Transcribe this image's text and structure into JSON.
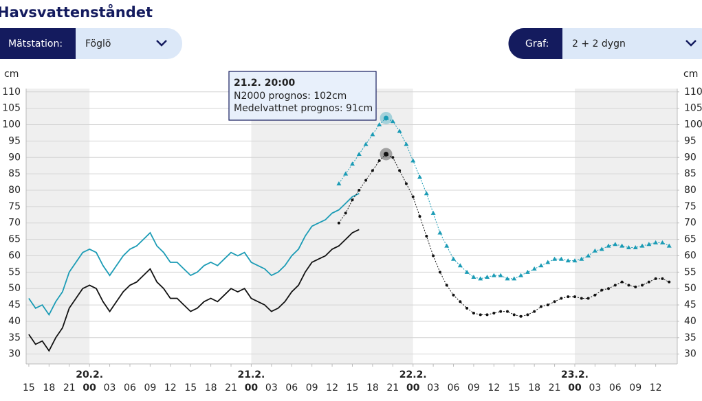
{
  "header": {
    "title": "Havsvattenståndet"
  },
  "controls": [
    {
      "label": "Mätstation:",
      "value": "Föglö"
    },
    {
      "label": "Graf:",
      "value": "2 + 2 dygn"
    }
  ],
  "chart_data": {
    "type": "line",
    "y_unit": "cm",
    "y2_unit": "cm",
    "xlim": [
      14.6,
      111.2
    ],
    "ylim": [
      27,
      111
    ],
    "y2lim": [
      27,
      111
    ],
    "yticks": [
      30,
      35,
      40,
      45,
      50,
      55,
      60,
      65,
      70,
      75,
      80,
      85,
      90,
      95,
      100,
      105,
      110
    ],
    "y2ticks": [
      30,
      35,
      40,
      45,
      50,
      55,
      60,
      65,
      70,
      75,
      80,
      85,
      90,
      95,
      100,
      105,
      110
    ],
    "grid": true,
    "xticks": [
      {
        "value": 15,
        "label": "15"
      },
      {
        "value": 18,
        "label": "18"
      },
      {
        "value": 21,
        "label": "21"
      },
      {
        "value": 24,
        "label": "00"
      },
      {
        "value": 27,
        "label": "03"
      },
      {
        "value": 30,
        "label": "06"
      },
      {
        "value": 33,
        "label": "09"
      },
      {
        "value": 36,
        "label": "12"
      },
      {
        "value": 39,
        "label": "15"
      },
      {
        "value": 42,
        "label": "18"
      },
      {
        "value": 45,
        "label": "21"
      },
      {
        "value": 48,
        "label": "00"
      },
      {
        "value": 51,
        "label": "03"
      },
      {
        "value": 54,
        "label": "06"
      },
      {
        "value": 57,
        "label": "09"
      },
      {
        "value": 60,
        "label": "12"
      },
      {
        "value": 63,
        "label": "15"
      },
      {
        "value": 66,
        "label": "18"
      },
      {
        "value": 69,
        "label": "21"
      },
      {
        "value": 72,
        "label": "00"
      },
      {
        "value": 75,
        "label": "03"
      },
      {
        "value": 78,
        "label": "06"
      },
      {
        "value": 81,
        "label": "09"
      },
      {
        "value": 84,
        "label": "12"
      },
      {
        "value": 87,
        "label": "15"
      },
      {
        "value": 90,
        "label": "18"
      },
      {
        "value": 93,
        "label": "21"
      },
      {
        "value": 96,
        "label": "00"
      },
      {
        "value": 99,
        "label": "03"
      },
      {
        "value": 102,
        "label": "06"
      },
      {
        "value": 105,
        "label": "09"
      },
      {
        "value": 108,
        "label": "12"
      }
    ],
    "day_labels": [
      {
        "value": 24,
        "label": "20.2."
      },
      {
        "value": 48,
        "label": "21.2."
      },
      {
        "value": 72,
        "label": "22.2."
      },
      {
        "value": 96,
        "label": "23.2."
      }
    ],
    "shaded": [
      [
        14.6,
        24
      ],
      [
        48,
        72
      ],
      [
        96,
        111.2
      ]
    ],
    "shade_color": "#efefef",
    "series": [
      {
        "color": "#1a9bb5",
        "style": "solid",
        "x": [
          15,
          16,
          17,
          18,
          19,
          20,
          21,
          22,
          23,
          24,
          25,
          26,
          27,
          28,
          29,
          30,
          31,
          32,
          33,
          34,
          35,
          36,
          37,
          38,
          39,
          40,
          41,
          42,
          43,
          44,
          45,
          46,
          47,
          48,
          49,
          50,
          51,
          52,
          53,
          54,
          55,
          56,
          57,
          58,
          59,
          60,
          61,
          62,
          63,
          64
        ],
        "values": [
          47,
          44,
          45,
          42,
          46,
          49,
          55,
          58,
          61,
          62,
          61,
          57,
          54,
          57,
          60,
          62,
          63,
          65,
          67,
          63,
          61,
          58,
          58,
          56,
          54,
          55,
          57,
          58,
          57,
          59,
          61,
          60,
          61,
          58,
          57,
          56,
          54,
          55,
          57,
          60,
          62,
          66,
          69,
          70,
          71,
          73,
          74,
          76,
          78,
          79
        ]
      },
      {
        "color": "#111111",
        "style": "solid",
        "x": [
          15,
          16,
          17,
          18,
          19,
          20,
          21,
          22,
          23,
          24,
          25,
          26,
          27,
          28,
          29,
          30,
          31,
          32,
          33,
          34,
          35,
          36,
          37,
          38,
          39,
          40,
          41,
          42,
          43,
          44,
          45,
          46,
          47,
          48,
          49,
          50,
          51,
          52,
          53,
          54,
          55,
          56,
          57,
          58,
          59,
          60,
          61,
          62,
          63,
          64
        ],
        "values": [
          36,
          33,
          34,
          31,
          35,
          38,
          44,
          47,
          50,
          51,
          50,
          46,
          43,
          46,
          49,
          51,
          52,
          54,
          56,
          52,
          50,
          47,
          47,
          45,
          43,
          44,
          46,
          47,
          46,
          48,
          50,
          49,
          50,
          47,
          46,
          45,
          43,
          44,
          46,
          49,
          51,
          55,
          58,
          59,
          60,
          62,
          63,
          65,
          67,
          68
        ]
      },
      {
        "color": "#1a9bb5",
        "style": "triangle",
        "x": [
          61,
          62,
          63,
          64,
          65,
          66,
          67,
          68,
          69,
          70,
          71,
          72,
          73,
          74,
          75,
          76,
          77,
          78,
          79,
          80,
          81,
          82,
          83,
          84,
          85,
          86,
          87,
          88,
          89,
          90,
          91,
          92,
          93,
          94,
          95,
          96,
          97,
          98,
          99,
          100,
          101,
          102,
          103,
          104,
          105,
          106,
          107,
          108,
          109,
          110
        ],
        "values": [
          82,
          85,
          88,
          91,
          94,
          97,
          100,
          102,
          101,
          98,
          94,
          89,
          84,
          79,
          73,
          67,
          63,
          59,
          57,
          55,
          53.5,
          53,
          53.5,
          54,
          54,
          53,
          53,
          54,
          55,
          56,
          57,
          58,
          59,
          59,
          58.5,
          58.5,
          59,
          60,
          61.5,
          62,
          63,
          63.5,
          63,
          62.5,
          62.5,
          63,
          63.5,
          64,
          64,
          63
        ]
      },
      {
        "color": "#111111",
        "style": "dot",
        "x": [
          61,
          62,
          63,
          64,
          65,
          66,
          67,
          68,
          69,
          70,
          71,
          72,
          73,
          74,
          75,
          76,
          77,
          78,
          79,
          80,
          81,
          82,
          83,
          84,
          85,
          86,
          87,
          88,
          89,
          90,
          91,
          92,
          93,
          94,
          95,
          96,
          97,
          98,
          99,
          100,
          101,
          102,
          103,
          104,
          105,
          106,
          107,
          108,
          109,
          110
        ],
        "values": [
          70,
          73,
          77,
          80,
          83,
          86,
          89,
          91,
          90,
          86,
          82,
          78,
          72,
          66,
          60,
          55,
          51,
          48,
          46,
          44,
          42.5,
          42,
          42,
          42.5,
          43,
          43,
          42,
          41.5,
          42,
          43,
          44.5,
          45,
          46,
          47,
          47.5,
          47.5,
          47,
          47,
          48,
          49.5,
          50,
          51,
          52,
          51,
          50.5,
          51,
          52,
          53,
          53,
          52
        ]
      }
    ],
    "tooltip": {
      "x": 68,
      "title": "21.2. 20:00",
      "lines": [
        "N2000 prognos: 102cm",
        "Medelvattnet prognos: 91cm"
      ]
    }
  }
}
